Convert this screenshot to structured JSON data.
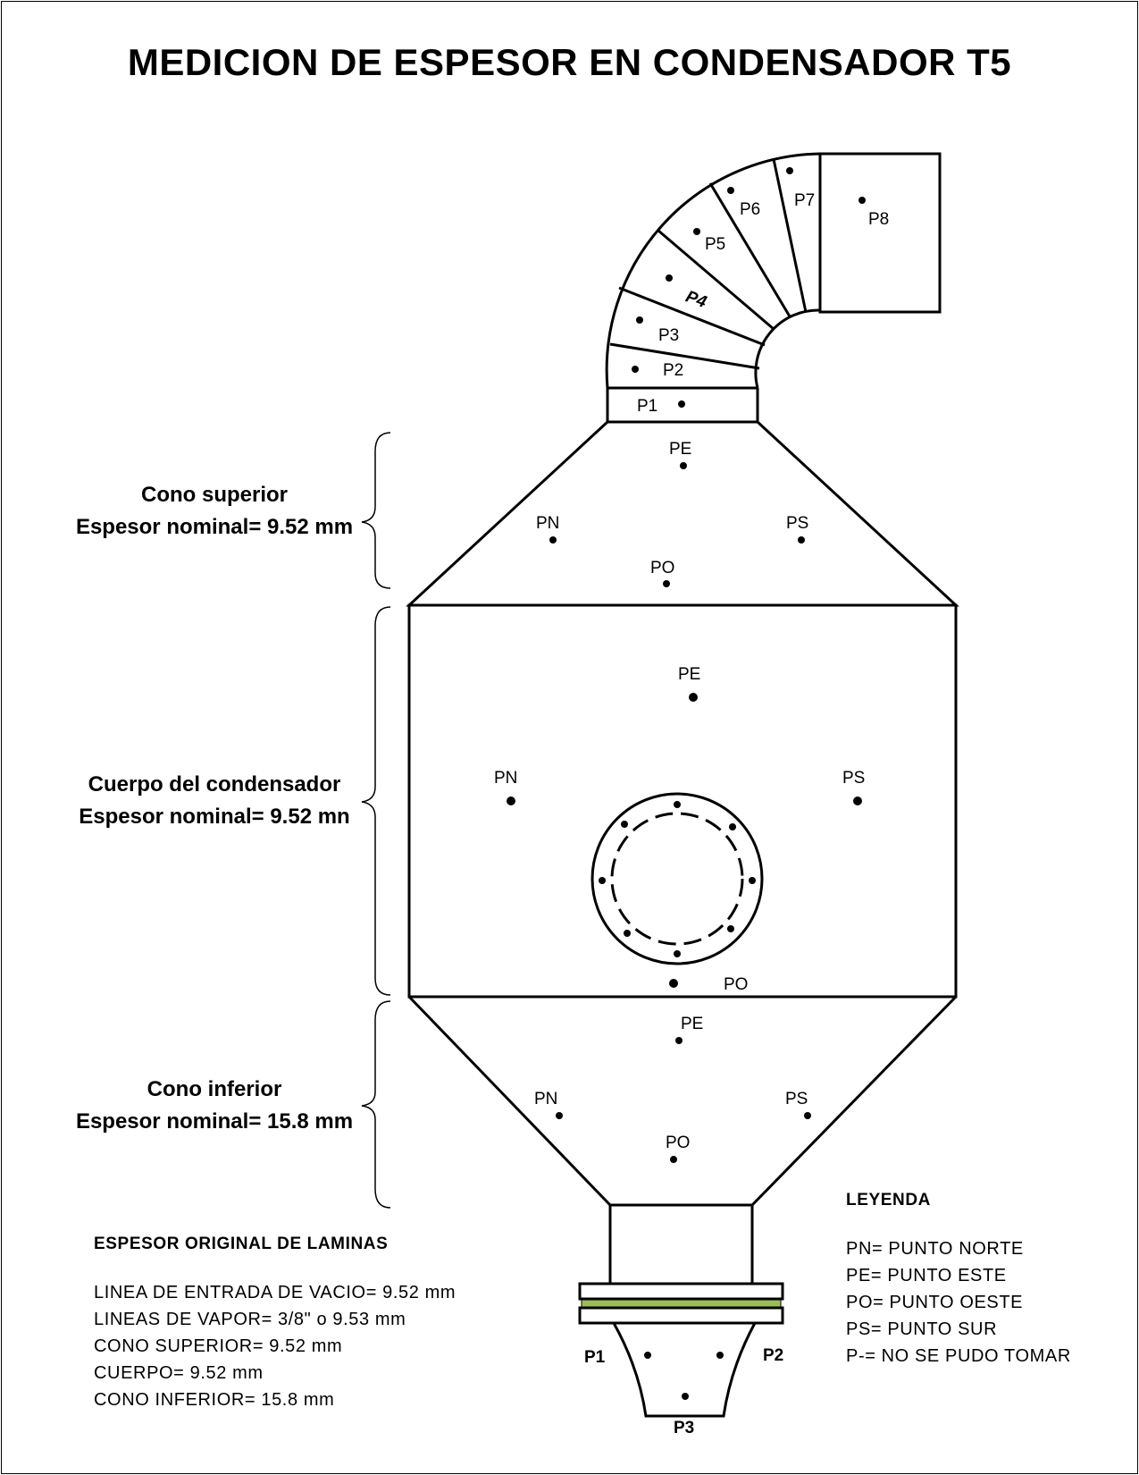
{
  "title": "MEDICION DE ESPESOR EN CONDENSADOR T5",
  "sections": {
    "upper_cone": {
      "name": "Cono superior",
      "thickness": "Espesor nominal= 9.52 mm"
    },
    "body": {
      "name": "Cuerpo del condensador",
      "thickness": "Espesor nominal= 9.52 mn"
    },
    "lower_cone": {
      "name": "Cono inferior",
      "thickness": "Espesor nominal= 15.8 mm"
    }
  },
  "elbow_points": [
    "P1",
    "P2",
    "P3",
    "P4",
    "P5",
    "P6",
    "P7",
    "P8"
  ],
  "upper_cone_points": {
    "pe": "PE",
    "pn": "PN",
    "ps": "PS",
    "po": "PO"
  },
  "body_points": {
    "pe": "PE",
    "pn": "PN",
    "ps": "PS",
    "po": "PO"
  },
  "lower_cone_points": {
    "pe": "PE",
    "pn": "PN",
    "ps": "PS",
    "po": "PO"
  },
  "bottom_points": {
    "p1": "P1",
    "p2": "P2",
    "p3": "P3"
  },
  "original_thickness": {
    "header": "ESPESOR ORIGINAL DE LAMINAS",
    "lines": [
      "LINEA DE ENTRADA DE VACIO= 9.52 mm",
      "LINEAS DE VAPOR= 3/8\" o 9.53 mm",
      "CONO SUPERIOR= 9.52 mm",
      "CUERPO= 9.52 mm",
      "CONO INFERIOR= 15.8 mm"
    ]
  },
  "legend": {
    "header": "LEYENDA",
    "lines": [
      "PN= PUNTO NORTE",
      "PE= PUNTO ESTE",
      "PO= PUNTO OESTE",
      "PS= PUNTO SUR",
      "P-= NO SE PUDO TOMAR"
    ]
  },
  "colors": {
    "line": "#000000",
    "gasket": "#9bbb59"
  }
}
